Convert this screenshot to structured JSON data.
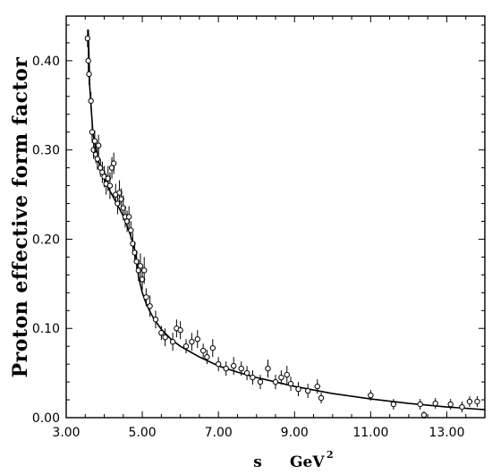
{
  "chart_data": {
    "type": "scatter",
    "title": "",
    "ylabel": "Proton  effective  form  factor",
    "xlabel": "s",
    "xlabel_unit": "GeV",
    "xlabel_unit_exp": "2",
    "xlim": [
      3.0,
      14.0
    ],
    "ylim": [
      0.0,
      0.45
    ],
    "xticks": [
      3.0,
      5.0,
      7.0,
      9.0,
      11.0,
      13.0
    ],
    "xtick_labels": [
      "3.00",
      "5.00",
      "7.00",
      "9.00",
      "11.00",
      "13.00"
    ],
    "yticks": [
      0.0,
      0.1,
      0.2,
      0.3,
      0.4
    ],
    "ytick_labels": [
      "0.00",
      "0.10",
      "0.20",
      "0.30",
      "0.40"
    ],
    "grid": false,
    "legend": "none",
    "colors": {
      "line": "#000000",
      "marker": "#000000",
      "background": "#ffffff"
    },
    "series": [
      {
        "kind": "points",
        "points": [
          [
            3.56,
            0.425,
            0.01
          ],
          [
            3.58,
            0.4,
            0.015
          ],
          [
            3.6,
            0.385,
            0.012
          ],
          [
            3.65,
            0.355,
            0.01
          ],
          [
            3.68,
            0.32,
            0.012
          ],
          [
            3.72,
            0.3,
            0.01
          ],
          [
            3.75,
            0.31,
            0.012
          ],
          [
            3.78,
            0.295,
            0.01
          ],
          [
            3.82,
            0.29,
            0.012
          ],
          [
            3.85,
            0.305,
            0.012
          ],
          [
            3.9,
            0.28,
            0.01
          ],
          [
            3.95,
            0.275,
            0.012
          ],
          [
            4.0,
            0.27,
            0.012
          ],
          [
            4.05,
            0.262,
            0.012
          ],
          [
            4.1,
            0.268,
            0.014
          ],
          [
            4.15,
            0.26,
            0.015
          ],
          [
            4.2,
            0.28,
            0.012
          ],
          [
            4.25,
            0.285,
            0.012
          ],
          [
            4.3,
            0.25,
            0.012
          ],
          [
            4.35,
            0.24,
            0.012
          ],
          [
            4.4,
            0.252,
            0.014
          ],
          [
            4.45,
            0.245,
            0.012
          ],
          [
            4.5,
            0.235,
            0.014
          ],
          [
            4.55,
            0.225,
            0.012
          ],
          [
            4.6,
            0.22,
            0.012
          ],
          [
            4.65,
            0.225,
            0.012
          ],
          [
            4.7,
            0.21,
            0.01
          ],
          [
            4.75,
            0.195,
            0.012
          ],
          [
            4.8,
            0.185,
            0.012
          ],
          [
            4.85,
            0.175,
            0.012
          ],
          [
            4.9,
            0.165,
            0.012
          ],
          [
            4.95,
            0.17,
            0.014
          ],
          [
            5.0,
            0.155,
            0.012
          ],
          [
            5.05,
            0.165,
            0.015
          ],
          [
            5.1,
            0.135,
            0.01
          ],
          [
            5.2,
            0.125,
            0.012
          ],
          [
            5.35,
            0.11,
            0.01
          ],
          [
            5.5,
            0.095,
            0.008
          ],
          [
            5.6,
            0.09,
            0.01
          ],
          [
            5.8,
            0.085,
            0.01
          ],
          [
            5.9,
            0.1,
            0.01
          ],
          [
            6.0,
            0.098,
            0.01
          ],
          [
            6.15,
            0.08,
            0.008
          ],
          [
            6.3,
            0.085,
            0.01
          ],
          [
            6.45,
            0.088,
            0.01
          ],
          [
            6.6,
            0.075,
            0.008
          ],
          [
            6.7,
            0.068,
            0.008
          ],
          [
            6.85,
            0.078,
            0.01
          ],
          [
            7.0,
            0.06,
            0.008
          ],
          [
            7.2,
            0.055,
            0.008
          ],
          [
            7.4,
            0.058,
            0.01
          ],
          [
            7.6,
            0.055,
            0.008
          ],
          [
            7.75,
            0.05,
            0.008
          ],
          [
            7.9,
            0.045,
            0.008
          ],
          [
            8.1,
            0.04,
            0.008
          ],
          [
            8.3,
            0.055,
            0.01
          ],
          [
            8.5,
            0.04,
            0.008
          ],
          [
            8.65,
            0.045,
            0.008
          ],
          [
            8.8,
            0.048,
            0.01
          ],
          [
            8.9,
            0.038,
            0.008
          ],
          [
            9.1,
            0.032,
            0.008
          ],
          [
            9.35,
            0.03,
            0.008
          ],
          [
            9.6,
            0.035,
            0.008
          ],
          [
            9.7,
            0.022,
            0.006
          ],
          [
            11.0,
            0.025,
            0.006
          ],
          [
            11.6,
            0.015,
            0.006
          ],
          [
            12.3,
            0.015,
            0.006
          ],
          [
            12.4,
            0.003,
            0.004
          ],
          [
            12.7,
            0.016,
            0.006
          ],
          [
            13.1,
            0.015,
            0.006
          ],
          [
            13.4,
            0.012,
            0.006
          ],
          [
            13.6,
            0.018,
            0.006
          ],
          [
            13.8,
            0.018,
            0.006
          ]
        ]
      },
      {
        "kind": "fit-line",
        "x": [
          3.58,
          3.62,
          3.7,
          3.8,
          3.9,
          4.0,
          4.1,
          4.2,
          4.3,
          4.4,
          4.5,
          4.6,
          4.7,
          4.8,
          4.85,
          4.9,
          5.0,
          5.1,
          5.2,
          5.3,
          5.5,
          5.75,
          6.0,
          6.5,
          7.0,
          7.5,
          8.0,
          8.5,
          9.0,
          9.5,
          10.0,
          11.0,
          12.0,
          13.0,
          14.0
        ],
        "y": [
          0.435,
          0.37,
          0.32,
          0.295,
          0.28,
          0.268,
          0.258,
          0.25,
          0.242,
          0.234,
          0.226,
          0.215,
          0.203,
          0.188,
          0.175,
          0.158,
          0.14,
          0.128,
          0.119,
          0.111,
          0.099,
          0.088,
          0.08,
          0.068,
          0.058,
          0.051,
          0.045,
          0.04,
          0.035,
          0.031,
          0.027,
          0.021,
          0.016,
          0.012,
          0.009
        ]
      }
    ]
  }
}
